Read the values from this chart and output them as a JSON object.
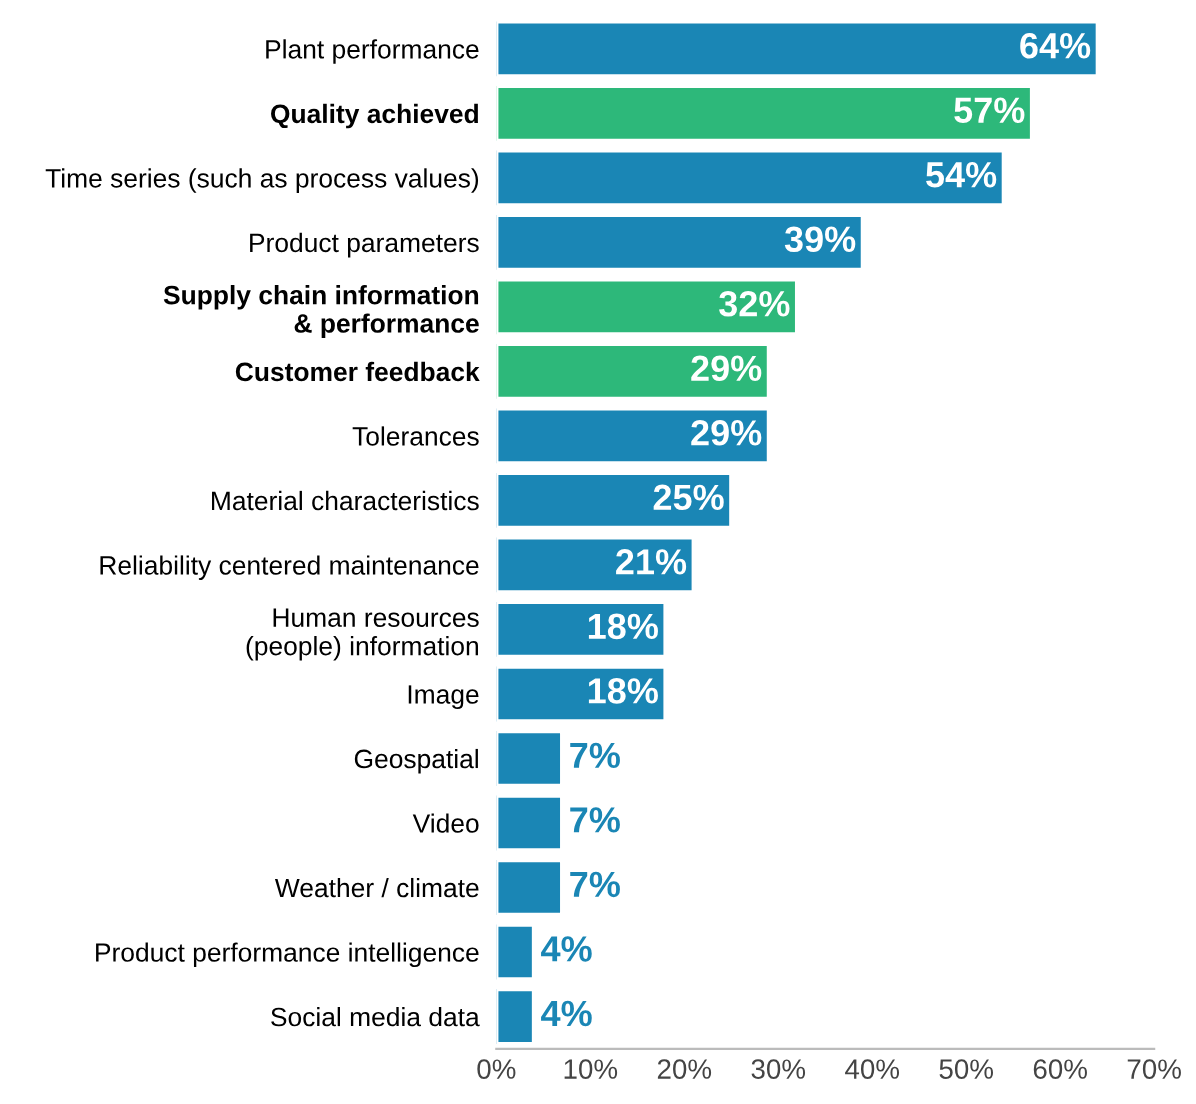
{
  "chart_data": {
    "type": "bar",
    "orientation": "horizontal",
    "categories": [
      "Plant performance",
      "Quality achieved",
      "Time series (such as process values)",
      "Product parameters",
      "Supply chain information\n& performance",
      "Customer feedback",
      "Tolerances",
      "Material characteristics",
      "Reliability centered maintenance",
      "Human resources\n(people) information",
      "Image",
      "Geospatial",
      "Video",
      "Weather / climate",
      "Product performance intelligence",
      "Social media data"
    ],
    "values": [
      64,
      57,
      54,
      39,
      32,
      29,
      29,
      25,
      21,
      18,
      18,
      7,
      7,
      7,
      4,
      4
    ],
    "value_labels": [
      "64%",
      "57%",
      "54%",
      "39%",
      "32%",
      "29%",
      "29%",
      "25%",
      "21%",
      "18%",
      "18%",
      "7%",
      "7%",
      "7%",
      "4%",
      "4%"
    ],
    "colors": [
      "#1a86b5",
      "#2db87a",
      "#1a86b5",
      "#1a86b5",
      "#2db87a",
      "#2db87a",
      "#1a86b5",
      "#1a86b5",
      "#1a86b5",
      "#1a86b5",
      "#1a86b5",
      "#1a86b5",
      "#1a86b5",
      "#1a86b5",
      "#1a86b5",
      "#1a86b5"
    ],
    "xlim": [
      0,
      70
    ],
    "xticks": [
      {
        "value": 0,
        "label": "0%"
      },
      {
        "value": 10,
        "label": "10%"
      },
      {
        "value": 20,
        "label": "20%"
      },
      {
        "value": 30,
        "label": "30%"
      },
      {
        "value": 40,
        "label": "40%"
      },
      {
        "value": 50,
        "label": "50%"
      },
      {
        "value": 60,
        "label": "60%"
      },
      {
        "value": 70,
        "label": "70%"
      }
    ],
    "grid": false,
    "legend": false
  }
}
